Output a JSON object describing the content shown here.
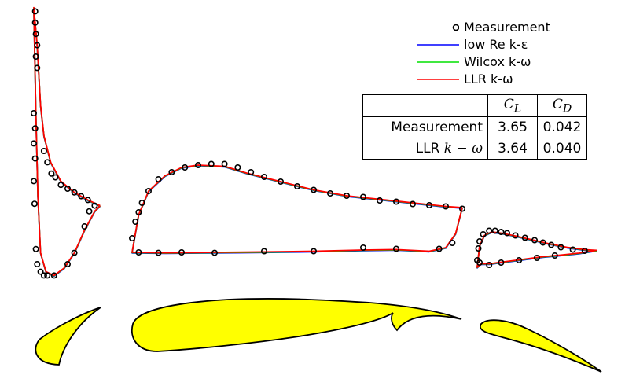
{
  "chart_data": {
    "type": "line",
    "legend": {
      "placement": "top-right",
      "entries": [
        {
          "name": "Measurement",
          "kind": "marker",
          "color": "#000000"
        },
        {
          "name": "low Re k-ε",
          "kind": "line",
          "color": "#0000ff"
        },
        {
          "name": "Wilcox k-ω",
          "kind": "line",
          "color": "#00e000"
        },
        {
          "name": "LLR k-ω",
          "kind": "line",
          "color": "#ff0000"
        }
      ]
    },
    "table": {
      "headers": [
        "",
        "C_L",
        "C_D"
      ],
      "header_base": [
        "C",
        "C"
      ],
      "header_sub": [
        "L",
        "D"
      ],
      "rows": [
        {
          "label": "Measurement",
          "cl": "3.65",
          "cd": "0.042"
        },
        {
          "label": "LLR k − ω",
          "label_text": "LLR ",
          "label_math": "k − ω",
          "cl": "3.64",
          "cd": "0.040"
        }
      ]
    },
    "grid": false,
    "elements": [
      {
        "name": "slat",
        "measurement": [
          [
            0.02,
            6.7
          ],
          [
            0.02,
            6.4
          ],
          [
            0.03,
            6.1
          ],
          [
            0.05,
            5.8
          ],
          [
            0.03,
            5.5
          ],
          [
            0.05,
            5.2
          ],
          [
            0.0,
            4.0
          ],
          [
            0.02,
            3.6
          ],
          [
            0.0,
            3.2
          ],
          [
            0.02,
            2.8
          ],
          [
            0.0,
            2.2
          ],
          [
            0.01,
            1.6
          ],
          [
            0.03,
            0.4
          ],
          [
            0.05,
            0.0
          ],
          [
            0.1,
            -0.2
          ],
          [
            0.15,
            -0.3
          ],
          [
            0.2,
            -0.3
          ],
          [
            0.3,
            -0.3
          ],
          [
            0.5,
            0.0
          ],
          [
            0.6,
            0.3
          ],
          [
            0.75,
            1.0
          ],
          [
            0.82,
            1.4
          ],
          [
            0.15,
            3.0
          ],
          [
            0.2,
            2.7
          ],
          [
            0.26,
            2.4
          ],
          [
            0.32,
            2.3
          ],
          [
            0.4,
            2.1
          ],
          [
            0.5,
            2.0
          ],
          [
            0.6,
            1.9
          ],
          [
            0.7,
            1.8
          ],
          [
            0.8,
            1.7
          ],
          [
            0.9,
            1.55
          ]
        ],
        "upper": [
          [
            0.0,
            6.8
          ],
          [
            0.05,
            5.8
          ],
          [
            0.1,
            4.2
          ],
          [
            0.15,
            3.4
          ],
          [
            0.25,
            2.7
          ],
          [
            0.4,
            2.2
          ],
          [
            0.6,
            1.9
          ],
          [
            0.8,
            1.7
          ],
          [
            0.98,
            1.55
          ]
        ],
        "lower": [
          [
            0.0,
            6.8
          ],
          [
            0.03,
            4.0
          ],
          [
            0.06,
            1.8
          ],
          [
            0.1,
            0.3
          ],
          [
            0.18,
            -0.2
          ],
          [
            0.3,
            -0.3
          ],
          [
            0.45,
            -0.1
          ],
          [
            0.6,
            0.3
          ],
          [
            0.75,
            0.9
          ],
          [
            0.9,
            1.4
          ],
          [
            0.98,
            1.55
          ]
        ]
      },
      {
        "name": "main element",
        "measurement": [
          [
            0.0,
            0.3
          ],
          [
            0.01,
            1.0
          ],
          [
            0.02,
            1.4
          ],
          [
            0.03,
            1.8
          ],
          [
            0.05,
            2.3
          ],
          [
            0.08,
            2.8
          ],
          [
            0.12,
            3.1
          ],
          [
            0.16,
            3.3
          ],
          [
            0.2,
            3.4
          ],
          [
            0.24,
            3.45
          ],
          [
            0.28,
            3.45
          ],
          [
            0.32,
            3.3
          ],
          [
            0.36,
            3.1
          ],
          [
            0.4,
            2.9
          ],
          [
            0.45,
            2.7
          ],
          [
            0.5,
            2.5
          ],
          [
            0.55,
            2.35
          ],
          [
            0.6,
            2.2
          ],
          [
            0.65,
            2.1
          ],
          [
            0.7,
            2.05
          ],
          [
            0.75,
            1.9
          ],
          [
            0.8,
            1.85
          ],
          [
            0.85,
            1.75
          ],
          [
            0.9,
            1.7
          ],
          [
            0.95,
            1.65
          ],
          [
            1.0,
            1.55
          ],
          [
            0.02,
            -0.3
          ],
          [
            0.08,
            -0.32
          ],
          [
            0.15,
            -0.3
          ],
          [
            0.25,
            -0.32
          ],
          [
            0.4,
            -0.25
          ],
          [
            0.55,
            -0.25
          ],
          [
            0.7,
            -0.1
          ],
          [
            0.8,
            -0.15
          ],
          [
            0.93,
            -0.15
          ],
          [
            0.97,
            0.1
          ]
        ],
        "upper": [
          [
            0.0,
            0.0
          ],
          [
            0.02,
            1.3
          ],
          [
            0.05,
            2.3
          ],
          [
            0.1,
            2.95
          ],
          [
            0.15,
            3.3
          ],
          [
            0.2,
            3.4
          ],
          [
            0.28,
            3.35
          ],
          [
            0.35,
            3.05
          ],
          [
            0.45,
            2.7
          ],
          [
            0.55,
            2.35
          ],
          [
            0.65,
            2.1
          ],
          [
            0.75,
            1.95
          ],
          [
            0.85,
            1.8
          ],
          [
            0.95,
            1.65
          ],
          [
            1.0,
            1.6
          ]
        ],
        "lower": [
          [
            0.0,
            -0.3
          ],
          [
            0.1,
            -0.32
          ],
          [
            0.25,
            -0.3
          ],
          [
            0.4,
            -0.28
          ],
          [
            0.55,
            -0.25
          ],
          [
            0.7,
            -0.2
          ],
          [
            0.8,
            -0.18
          ],
          [
            0.9,
            -0.25
          ],
          [
            0.95,
            -0.1
          ],
          [
            0.98,
            0.5
          ],
          [
            1.0,
            1.6
          ]
        ]
      },
      {
        "name": "flap",
        "measurement": [
          [
            0.0,
            0.3
          ],
          [
            0.01,
            0.8
          ],
          [
            0.02,
            1.1
          ],
          [
            0.05,
            1.4
          ],
          [
            0.1,
            1.55
          ],
          [
            0.15,
            1.55
          ],
          [
            0.2,
            1.5
          ],
          [
            0.25,
            1.45
          ],
          [
            0.32,
            1.35
          ],
          [
            0.4,
            1.25
          ],
          [
            0.48,
            1.15
          ],
          [
            0.55,
            1.05
          ],
          [
            0.62,
            0.95
          ],
          [
            0.7,
            0.85
          ],
          [
            0.8,
            0.75
          ],
          [
            0.9,
            0.7
          ],
          [
            0.02,
            0.2
          ],
          [
            0.1,
            0.1
          ],
          [
            0.2,
            0.2
          ],
          [
            0.35,
            0.3
          ],
          [
            0.5,
            0.4
          ],
          [
            0.65,
            0.5
          ]
        ],
        "upper": [
          [
            0.0,
            0.0
          ],
          [
            0.02,
            0.9
          ],
          [
            0.06,
            1.35
          ],
          [
            0.12,
            1.5
          ],
          [
            0.2,
            1.45
          ],
          [
            0.3,
            1.35
          ],
          [
            0.45,
            1.18
          ],
          [
            0.6,
            1.0
          ],
          [
            0.75,
            0.85
          ],
          [
            0.9,
            0.75
          ],
          [
            1.0,
            0.72
          ]
        ],
        "lower": [
          [
            0.0,
            0.0
          ],
          [
            0.03,
            0.15
          ],
          [
            0.1,
            0.15
          ],
          [
            0.25,
            0.25
          ],
          [
            0.4,
            0.35
          ],
          [
            0.55,
            0.45
          ],
          [
            0.7,
            0.52
          ],
          [
            0.85,
            0.6
          ],
          [
            1.0,
            0.72
          ]
        ]
      }
    ]
  }
}
